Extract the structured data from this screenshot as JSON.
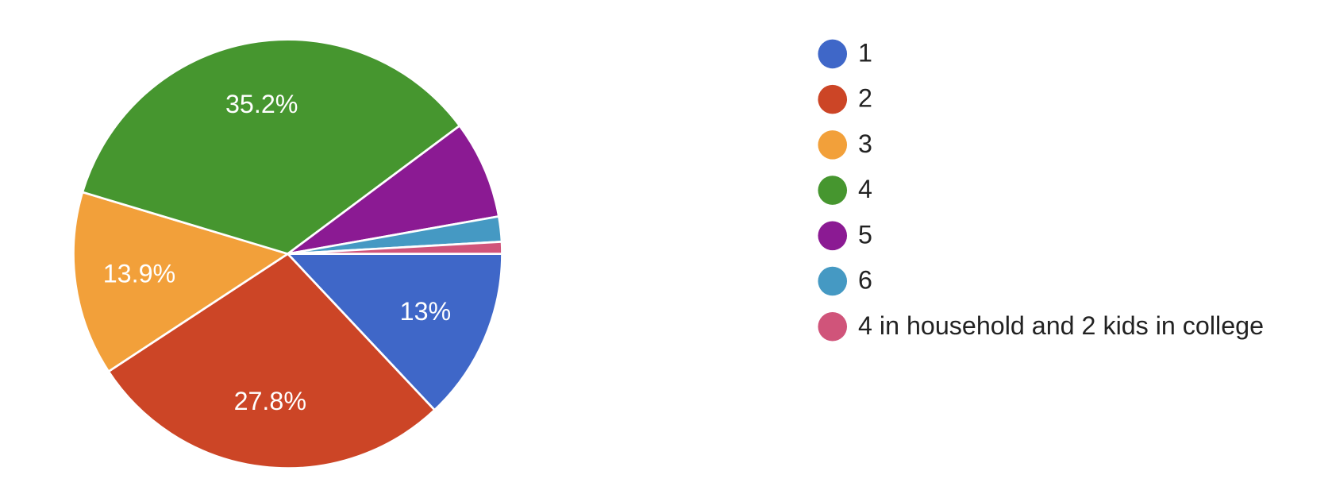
{
  "chart_data": {
    "type": "pie",
    "categories": [
      "1",
      "2",
      "3",
      "4",
      "5",
      "6",
      "4 in household and 2 kids in college"
    ],
    "values": [
      13,
      27.8,
      13.9,
      35.2,
      7.4,
      1.9,
      0.9
    ],
    "value_labels": [
      "13%",
      "27.8%",
      "13.9%",
      "35.2%",
      null,
      null,
      null
    ],
    "colors": [
      "#3f67c8",
      "#cc4526",
      "#f2a03a",
      "#46962f",
      "#8b1a93",
      "#4599c3",
      "#d0547a"
    ],
    "legend": "right"
  }
}
